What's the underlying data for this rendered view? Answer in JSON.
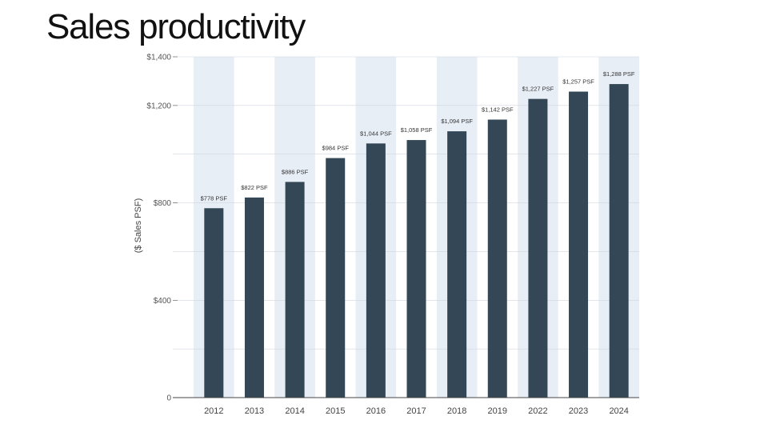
{
  "page": {
    "title": "Sales productivity"
  },
  "colors": {
    "bar": "#334756",
    "band": "#e8eef6",
    "axis": "#555555",
    "grid": "#d0d6de"
  },
  "chart_data": {
    "type": "bar",
    "title": "",
    "xlabel": "",
    "ylabel": "($ Sales PSF)",
    "categories": [
      "2012",
      "2013",
      "2014",
      "2015",
      "2016",
      "2017",
      "2018",
      "2019",
      "2022",
      "2023",
      "2024"
    ],
    "values": [
      778,
      822,
      886,
      984,
      1044,
      1058,
      1094,
      1142,
      1227,
      1257,
      1288
    ],
    "data_labels": [
      "$778 PSF",
      "$822 PSF",
      "$886 PSF",
      "$984 PSF",
      "$1,044 PSF",
      "$1,058 PSF",
      "$1,094 PSF",
      "$1,142 PSF",
      "$1,227 PSF",
      "$1,257 PSF",
      "$1,288 PSF"
    ],
    "yticks": [
      0,
      400,
      800,
      1200,
      1400
    ],
    "ytick_labels": [
      "0",
      "$400",
      "$800",
      "$1,200",
      "$1,400"
    ],
    "ylim": [
      0,
      1400
    ],
    "grid": true,
    "alternating_bands": true
  }
}
